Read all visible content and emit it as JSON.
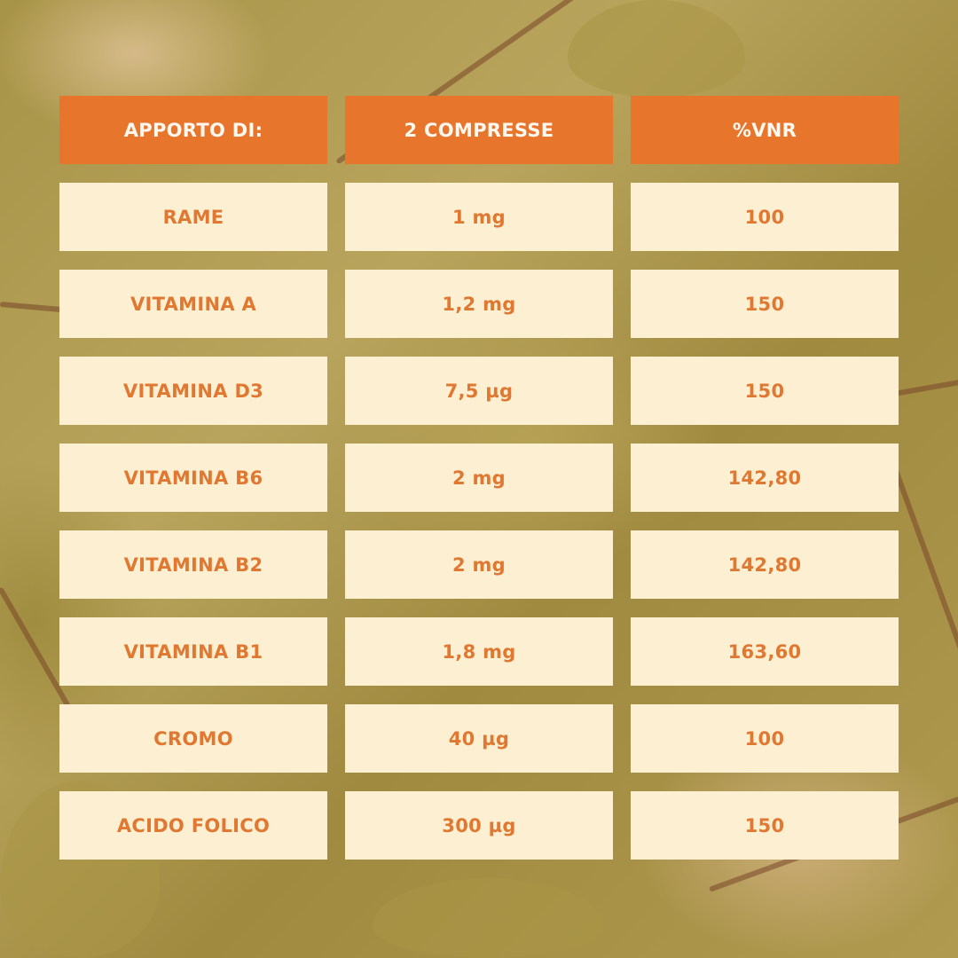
{
  "colors": {
    "header_bg": "#e8752c",
    "header_text": "#fff8ee",
    "cell_bg": "#fdf0d2",
    "cell_text": "#e07832"
  },
  "table": {
    "headers": [
      "APPORTO DI:",
      "2 COMPRESSE",
      "%VNR"
    ],
    "rows": [
      [
        "RAME",
        "1 mg",
        "100"
      ],
      [
        "VITAMINA A",
        "1,2 mg",
        "150"
      ],
      [
        "VITAMINA D3",
        "7,5 µg",
        "150"
      ],
      [
        "VITAMINA B6",
        "2 mg",
        "142,80"
      ],
      [
        "VITAMINA B2",
        "2 mg",
        "142,80"
      ],
      [
        "VITAMINA B1",
        "1,8 mg",
        "163,60"
      ],
      [
        "CROMO",
        "40 µg",
        "100"
      ],
      [
        "ACIDO FOLICO",
        "300 µg",
        "150"
      ]
    ]
  }
}
